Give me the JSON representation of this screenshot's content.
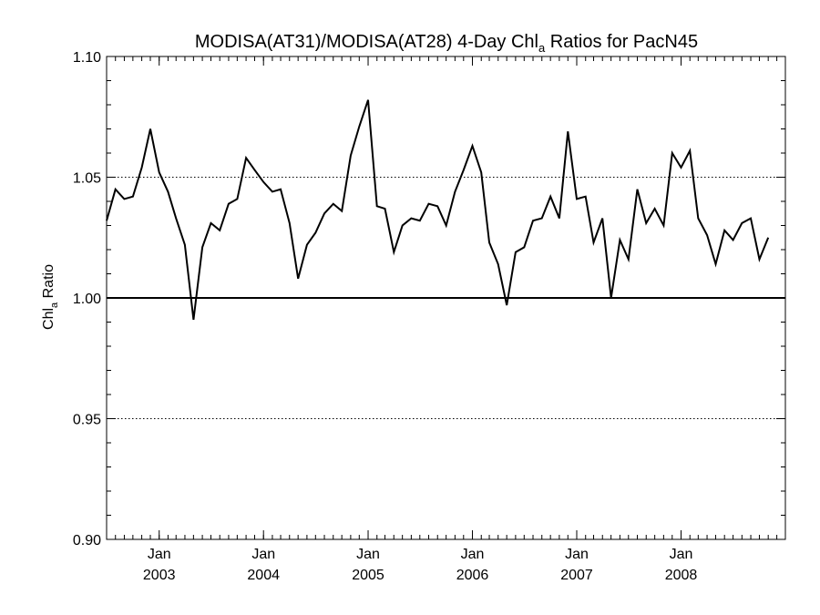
{
  "chart_data": {
    "type": "line",
    "title": "MODISA(AT31)/MODISA(AT28) 4-Day Chl",
    "title_subscript": "a",
    "title_suffix": " Ratios for PacN45",
    "ylabel": "Chl",
    "ylabel_subscript": "a",
    "ylabel_suffix": " Ratio",
    "ylim": [
      0.9,
      1.1
    ],
    "yticks": [
      {
        "value": 0.9,
        "label": "0.90"
      },
      {
        "value": 0.95,
        "label": "0.95"
      },
      {
        "value": 1.0,
        "label": "1.00"
      },
      {
        "value": 1.05,
        "label": "1.05"
      },
      {
        "value": 1.1,
        "label": "1.10"
      }
    ],
    "xlim": [
      "2002-07-01",
      "2008-12-31"
    ],
    "xticks": [
      {
        "date": "2003-01-01",
        "month": "Jan",
        "year": "2003"
      },
      {
        "date": "2004-01-01",
        "month": "Jan",
        "year": "2004"
      },
      {
        "date": "2005-01-01",
        "month": "Jan",
        "year": "2005"
      },
      {
        "date": "2006-01-01",
        "month": "Jan",
        "year": "2006"
      },
      {
        "date": "2007-01-01",
        "month": "Jan",
        "year": "2007"
      },
      {
        "date": "2008-01-01",
        "month": "Jan",
        "year": "2008"
      }
    ],
    "grid": "dotted at 0.95 and 1.05",
    "reference_line": 1.0,
    "series": [
      {
        "color": "#000000",
        "points": [
          [
            "2002-07-01",
            1.032
          ],
          [
            "2002-08-01",
            1.045
          ],
          [
            "2002-09-01",
            1.041
          ],
          [
            "2002-10-01",
            1.042
          ],
          [
            "2002-11-01",
            1.054
          ],
          [
            "2002-12-01",
            1.07
          ],
          [
            "2003-01-01",
            1.052
          ],
          [
            "2003-02-01",
            1.044
          ],
          [
            "2003-03-01",
            1.033
          ],
          [
            "2003-04-01",
            1.022
          ],
          [
            "2003-05-01",
            0.991
          ],
          [
            "2003-06-01",
            1.021
          ],
          [
            "2003-07-01",
            1.031
          ],
          [
            "2003-08-01",
            1.028
          ],
          [
            "2003-09-01",
            1.039
          ],
          [
            "2003-10-01",
            1.041
          ],
          [
            "2003-11-01",
            1.058
          ],
          [
            "2003-12-01",
            1.053
          ],
          [
            "2004-01-01",
            1.048
          ],
          [
            "2004-02-01",
            1.044
          ],
          [
            "2004-03-01",
            1.045
          ],
          [
            "2004-04-01",
            1.031
          ],
          [
            "2004-05-01",
            1.008
          ],
          [
            "2004-06-01",
            1.022
          ],
          [
            "2004-07-01",
            1.027
          ],
          [
            "2004-08-01",
            1.035
          ],
          [
            "2004-09-01",
            1.039
          ],
          [
            "2004-10-01",
            1.036
          ],
          [
            "2004-11-01",
            1.059
          ],
          [
            "2004-12-01",
            1.071
          ],
          [
            "2005-01-01",
            1.082
          ],
          [
            "2005-02-01",
            1.038
          ],
          [
            "2005-03-01",
            1.037
          ],
          [
            "2005-04-01",
            1.019
          ],
          [
            "2005-05-01",
            1.03
          ],
          [
            "2005-06-01",
            1.033
          ],
          [
            "2005-07-01",
            1.032
          ],
          [
            "2005-08-01",
            1.039
          ],
          [
            "2005-09-01",
            1.038
          ],
          [
            "2005-10-01",
            1.03
          ],
          [
            "2005-11-01",
            1.044
          ],
          [
            "2005-12-01",
            1.053
          ],
          [
            "2006-01-01",
            1.063
          ],
          [
            "2006-02-01",
            1.052
          ],
          [
            "2006-03-01",
            1.023
          ],
          [
            "2006-04-01",
            1.014
          ],
          [
            "2006-05-01",
            0.997
          ],
          [
            "2006-06-01",
            1.019
          ],
          [
            "2006-07-01",
            1.021
          ],
          [
            "2006-08-01",
            1.032
          ],
          [
            "2006-09-01",
            1.033
          ],
          [
            "2006-10-01",
            1.042
          ],
          [
            "2006-11-01",
            1.033
          ],
          [
            "2006-12-01",
            1.069
          ],
          [
            "2007-01-01",
            1.041
          ],
          [
            "2007-02-01",
            1.042
          ],
          [
            "2007-03-01",
            1.023
          ],
          [
            "2007-04-01",
            1.033
          ],
          [
            "2007-05-01",
            1.0
          ],
          [
            "2007-06-01",
            1.024
          ],
          [
            "2007-07-01",
            1.016
          ],
          [
            "2007-08-01",
            1.045
          ],
          [
            "2007-09-01",
            1.031
          ],
          [
            "2007-10-01",
            1.037
          ],
          [
            "2007-11-01",
            1.03
          ],
          [
            "2007-12-01",
            1.06
          ],
          [
            "2008-01-01",
            1.054
          ],
          [
            "2008-02-01",
            1.061
          ],
          [
            "2008-03-01",
            1.033
          ],
          [
            "2008-04-01",
            1.026
          ],
          [
            "2008-05-01",
            1.014
          ],
          [
            "2008-06-01",
            1.028
          ],
          [
            "2008-07-01",
            1.024
          ],
          [
            "2008-08-01",
            1.031
          ],
          [
            "2008-09-01",
            1.033
          ],
          [
            "2008-10-01",
            1.016
          ],
          [
            "2008-11-01",
            1.025
          ]
        ]
      }
    ]
  }
}
